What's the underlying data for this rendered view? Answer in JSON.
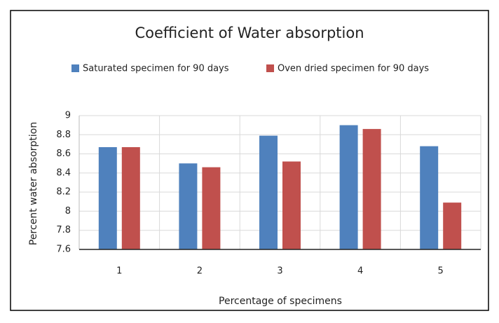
{
  "chart_data": {
    "type": "bar",
    "title": "Coefficient of Water absorption",
    "x_label": "Percentage of specimens",
    "y_label": "Percent water absorption",
    "categories": [
      "1",
      "2",
      "3",
      "4",
      "5"
    ],
    "series": [
      {
        "name": "Saturated specimen for 90 days",
        "color": "#4f81bd",
        "values": [
          8.67,
          8.5,
          8.79,
          8.9,
          8.68
        ]
      },
      {
        "name": "Oven dried specimen for 90 days",
        "color": "#c0504d",
        "values": [
          8.67,
          8.46,
          8.52,
          8.86,
          8.09
        ]
      }
    ],
    "ylim": [
      7.6,
      9
    ],
    "yticks": [
      7.6,
      7.8,
      8,
      8.2,
      8.4,
      8.6,
      8.8,
      9
    ],
    "grid": true,
    "legend": "top"
  }
}
